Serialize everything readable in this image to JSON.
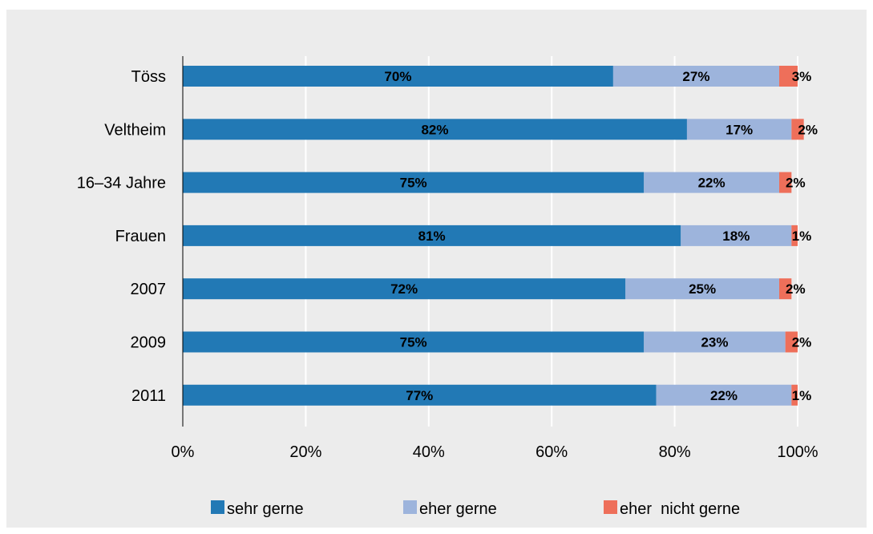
{
  "chart_data": {
    "type": "bar",
    "orientation": "horizontal",
    "stacked": true,
    "categories": [
      "Töss",
      "Veltheim",
      "16–34 Jahre",
      "Frauen",
      "2007",
      "2009",
      "2011"
    ],
    "series": [
      {
        "name": "sehr gerne",
        "color": "#2279b5",
        "values": [
          70,
          82,
          75,
          81,
          72,
          75,
          77
        ]
      },
      {
        "name": "eher gerne",
        "color": "#9db4dc",
        "values": [
          27,
          17,
          22,
          18,
          25,
          23,
          22
        ]
      },
      {
        "name": "eher  nicht gerne",
        "color": "#ee6f5a",
        "values": [
          3,
          2,
          2,
          1,
          2,
          2,
          1
        ]
      }
    ],
    "data_labels": [
      [
        "70%",
        "82%",
        "75%",
        "81%",
        "72%",
        "75%",
        "77%"
      ],
      [
        "27%",
        "17%",
        "22%",
        "18%",
        "25%",
        "23%",
        "22%"
      ],
      [
        "3%",
        "2%",
        "2%",
        "1%",
        "2%",
        "2%",
        "1%"
      ]
    ],
    "xlim": [
      0,
      100
    ],
    "xticks": [
      "0%",
      "20%",
      "40%",
      "60%",
      "80%",
      "100%"
    ],
    "grid": true,
    "legend_position": "bottom"
  }
}
